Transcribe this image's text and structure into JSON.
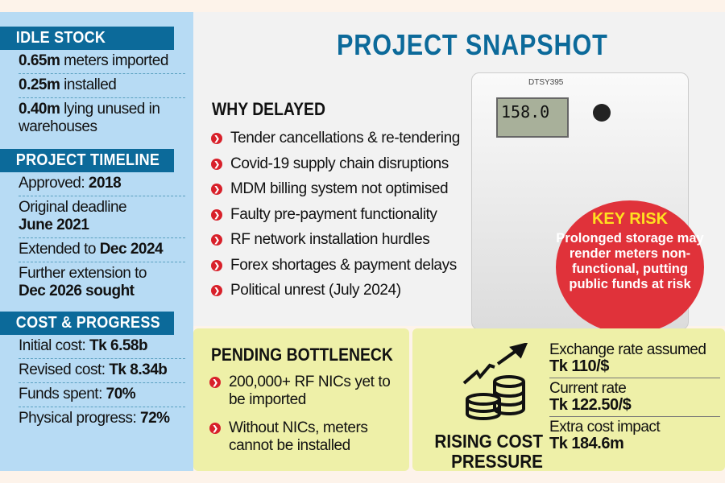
{
  "title": "PROJECT SNAPSHOT",
  "idle_stock": {
    "header": "IDLE STOCK",
    "rows": [
      {
        "value": "0.65m",
        "text": " meters imported"
      },
      {
        "value": "0.25m",
        "text": " installed"
      },
      {
        "value": "0.40m",
        "text": " lying unused in warehouses"
      }
    ]
  },
  "timeline": {
    "header": "PROJECT TIMELINE",
    "rows": [
      {
        "text": "Approved: ",
        "value": "2018"
      },
      {
        "text": "Original deadline ",
        "value": "June 2021"
      },
      {
        "text": "Extended to ",
        "value": "Dec 2024"
      },
      {
        "text": "Further extension to ",
        "value": "Dec 2026 sought"
      }
    ]
  },
  "cost_progress": {
    "header": "COST & PROGRESS",
    "rows": [
      {
        "text": "Initial cost: ",
        "value": "Tk 6.58b"
      },
      {
        "text": "Revised cost: ",
        "value": "Tk 8.34b"
      },
      {
        "text": "Funds spent: ",
        "value": "70%"
      },
      {
        "text": "Physical progress: ",
        "value": "72%"
      }
    ]
  },
  "why_delayed": {
    "header": "WHY DELAYED",
    "items": [
      "Tender cancellations & re-tendering",
      "Covid-19 supply chain disruptions",
      "MDM billing system not optimised",
      "Faulty pre-payment functionality",
      "RF network installation hurdles",
      "Forex shortages & payment delays",
      "Political unrest (July 2024)"
    ]
  },
  "meter": {
    "label": "DTSY395",
    "display": "158.0"
  },
  "key_risk": {
    "title": "KEY RISK",
    "text": "Prolonged storage may render meters non-functional, putting public funds at risk"
  },
  "pending": {
    "header": "PENDING BOTTLENECK",
    "items": [
      "200,000+ RF NICs yet to be imported",
      "Without NICs, meters cannot be installed"
    ]
  },
  "rising_cost": {
    "title_line1": "RISING COST",
    "title_line2": "PRESSURE",
    "items": [
      {
        "label": "Exchange rate assumed",
        "value": "Tk 110/$"
      },
      {
        "label": "Current rate",
        "value": "Tk 122.50/$"
      },
      {
        "label": "Extra cost impact",
        "value": "Tk 184.6m"
      }
    ]
  },
  "colors": {
    "blue": "#0c6a9a",
    "red": "#d8202a",
    "panel": "#b7dbf4",
    "green": "#eef0a8"
  }
}
